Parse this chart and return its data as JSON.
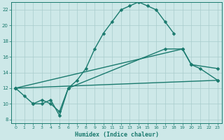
{
  "xlabel": "Humidex (Indice chaleur)",
  "bg_color": "#cde8e8",
  "grid_color": "#a8cccc",
  "line_color": "#1a7a6e",
  "xlim": [
    -0.5,
    23.5
  ],
  "ylim": [
    7.5,
    23.0
  ],
  "xticks": [
    0,
    1,
    2,
    3,
    4,
    5,
    6,
    7,
    8,
    9,
    10,
    11,
    12,
    13,
    14,
    15,
    16,
    17,
    18,
    19,
    20,
    21,
    22,
    23
  ],
  "yticks": [
    8,
    10,
    12,
    14,
    16,
    18,
    20,
    22
  ],
  "series1_x": [
    0,
    1,
    2,
    3,
    4,
    5,
    6,
    7,
    8,
    9,
    10,
    11,
    12,
    13,
    14,
    15,
    16,
    17,
    18
  ],
  "series1_y": [
    12,
    11,
    10,
    10,
    10.5,
    8.5,
    12,
    13,
    14.5,
    17,
    19,
    20.5,
    22,
    22.5,
    23,
    22.5,
    22,
    20.5,
    19
  ],
  "series2_x": [
    2,
    3,
    4,
    5,
    6,
    17,
    19,
    20,
    21,
    23
  ],
  "series2_y": [
    10,
    10.5,
    10,
    9,
    12,
    17,
    17,
    15,
    14.5,
    13
  ],
  "series3_x": [
    0,
    19,
    20,
    23
  ],
  "series3_y": [
    12,
    17,
    15,
    14.5
  ],
  "series4_x": [
    0,
    23
  ],
  "series4_y": [
    12,
    13
  ]
}
